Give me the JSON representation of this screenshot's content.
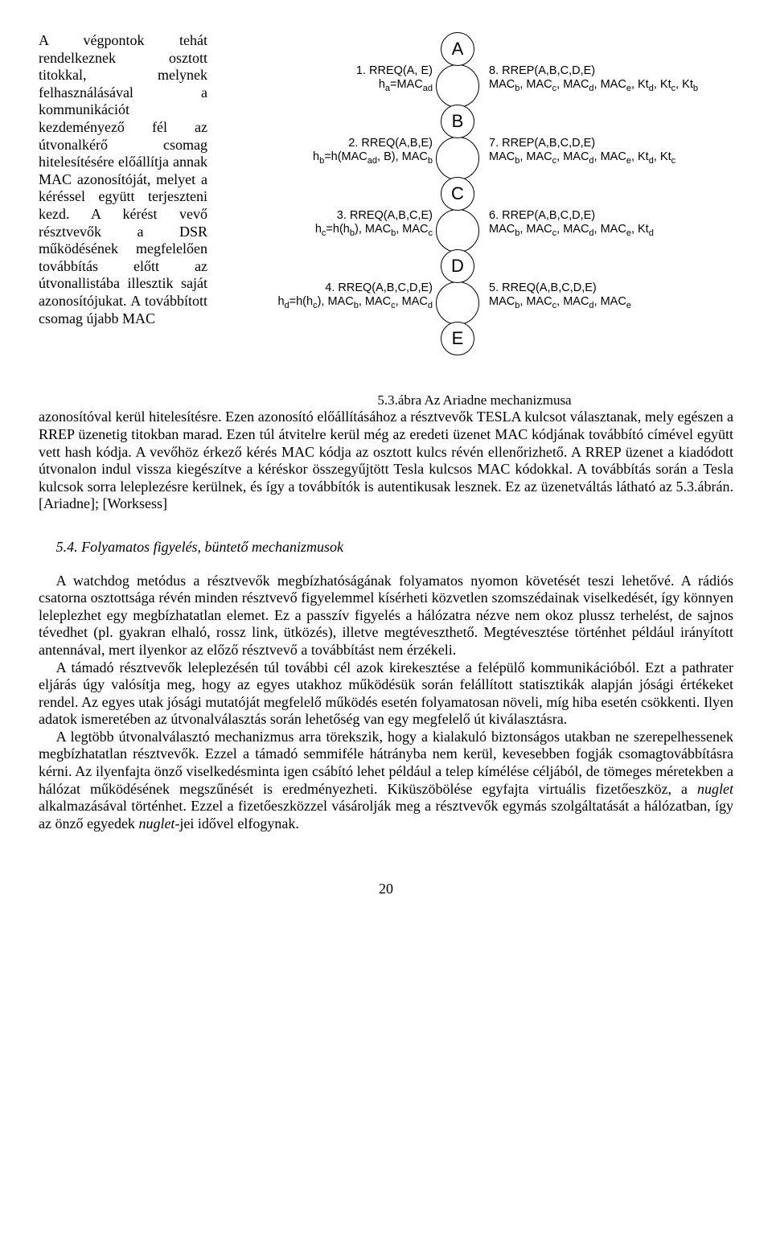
{
  "wrap_text_left": "A végpontok tehát rendelkeznek osztott titokkal, melynek felhasználásával a kommunikációt kezdeményező fél az útvonalkérő csomag hitelesítésére előállítja annak MAC azonosítóját, melyet a kéréssel együtt terjeszteni kezd. A kérést vevő résztvevők a DSR működésének megfelelően továbbítás előtt az útvonallistába illesztik saját azonosítójukat. A továbbított csomag újabb MAC",
  "figure": {
    "nodes": [
      "A",
      "B",
      "C",
      "D",
      "E"
    ],
    "left_labels": [
      {
        "t": "1. RREQ(A, E)",
        "d": "h<span class=\"sub\">a</span>=MAC<span class=\"sub\">ad</span>"
      },
      {
        "t": "2. RREQ(A,B,E)",
        "d": "h<span class=\"sub\">b</span>=h(MAC<span class=\"sub\">ad</span>, B), MAC<span class=\"sub\">b</span>"
      },
      {
        "t": "3. RREQ(A,B,C,E)",
        "d": "h<span class=\"sub\">c</span>=h(h<span class=\"sub\">b</span>), MAC<span class=\"sub\">b</span>, MAC<span class=\"sub\">c</span>"
      },
      {
        "t": "4. RREQ(A,B,C,D,E)",
        "d": "h<span class=\"sub\">d</span>=h(h<span class=\"sub\">c</span>), MAC<span class=\"sub\">b</span>, MAC<span class=\"sub\">c</span>, MAC<span class=\"sub\">d</span>"
      }
    ],
    "right_labels": [
      {
        "t": "8. RREP(A,B,C,D,E)",
        "d": "MAC<span class=\"sub\">b</span>, MAC<span class=\"sub\">c</span>, MAC<span class=\"sub\">d</span>, MAC<span class=\"sub\">e</span>, Kt<span class=\"sub\">d</span>, Kt<span class=\"sub\">c</span>, Kt<span class=\"sub\">b</span>"
      },
      {
        "t": "7. RREP(A,B,C,D,E)",
        "d": "MAC<span class=\"sub\">b</span>, MAC<span class=\"sub\">c</span>, MAC<span class=\"sub\">d</span>, MAC<span class=\"sub\">e</span>, Kt<span class=\"sub\">d</span>, Kt<span class=\"sub\">c</span>"
      },
      {
        "t": "6. RREP(A,B,C,D,E)",
        "d": "MAC<span class=\"sub\">b</span>, MAC<span class=\"sub\">c</span>, MAC<span class=\"sub\">d</span>, MAC<span class=\"sub\">e</span>, Kt<span class=\"sub\">d</span>"
      },
      {
        "t": "5. RREQ(A,B,C,D,E)",
        "d": "MAC<span class=\"sub\">b</span>, MAC<span class=\"sub\">c</span>, MAC<span class=\"sub\">d</span>, MAC<span class=\"sub\">e</span>"
      }
    ],
    "caption": "5.3.ábra  Az Ariadne mechanizmusa"
  },
  "para1_continuation": "azonosítóval kerül hitelesítésre. Ezen azonosító előállításához a résztvevők TESLA kulcsot választanak, mely egészen a RREP üzenetig titokban marad. Ezen túl átvitelre kerül még az eredeti üzenet MAC kódjának továbbító címével együtt vett hash kódja. A vevőhöz érkező kérés MAC kódja az osztott kulcs révén ellenőrizhető. A RREP üzenet a kiadódott útvonalon indul vissza kiegészítve a kéréskor összegyűjtött Tesla kulcsos MAC kódokkal. A továbbítás során a Tesla kulcsok sorra leleplezésre kerülnek, és így a továbbítók is autentikusak lesznek. Ez az üzenetváltás látható az 5.3.ábrán. [Ariadne]; [Worksess]",
  "heading": "5.4. Folyamatos figyelés, büntető mechanizmusok",
  "p2": "A watchdog metódus a résztvevők megbízhatóságának folyamatos nyomon követését teszi lehetővé. A rádiós csatorna osztottsága révén minden résztvevő figyelemmel kísérheti közvetlen szomszédainak viselkedését, így könnyen leleplezhet egy megbízhatatlan elemet. Ez a passzív figyelés a hálózatra nézve nem okoz plussz terhelést, de sajnos tévedhet (pl. gyakran elhaló, rossz link, ütközés), illetve megtéveszthető. Megtévesztése történhet például irányított antennával, mert ilyenkor az előző résztvevő a továbbítást nem érzékeli.",
  "p3": "A támadó résztvevők leleplezésén túl további cél azok kirekesztése a felépülő kommunikációból. Ezt a pathrater eljárás úgy valósítja meg, hogy az egyes utakhoz működésük során felállított statisztikák alapján jósági értékeket rendel. Az egyes utak jósági mutatóját megfelelő működés esetén folyamatosan növeli, míg hiba esetén csökkenti. Ilyen adatok ismeretében az útvonalválasztás során lehetőség van egy megfelelő út kiválasztásra.",
  "p4_a": "A legtöbb útvonalválasztó mechanizmus arra törekszik, hogy a kialakuló biztonságos utakban ne szerepelhessenek megbízhatatlan résztvevők. Ezzel a támadó semmiféle hátrányba nem kerül, kevesebben fogják csomagtovábbításra kérni. Az ilyenfajta önző viselkedésminta igen csábító lehet például a telep kímélése céljából, de tömeges méretekben a hálózat működésének megszűnését is eredményezheti. Kiküszöbölése egyfajta virtuális fizetőeszköz, a ",
  "p4_nuglet1": "nuglet",
  "p4_b": " alkalmazásával történhet. Ezzel a fizetőeszközzel vásárolják meg a résztvevők egymás szolgáltatását a hálózatban, így az önző egyedek ",
  "p4_nuglet2": "nuglet",
  "p4_c": "-jei idővel elfogynak.",
  "page_number": "20"
}
